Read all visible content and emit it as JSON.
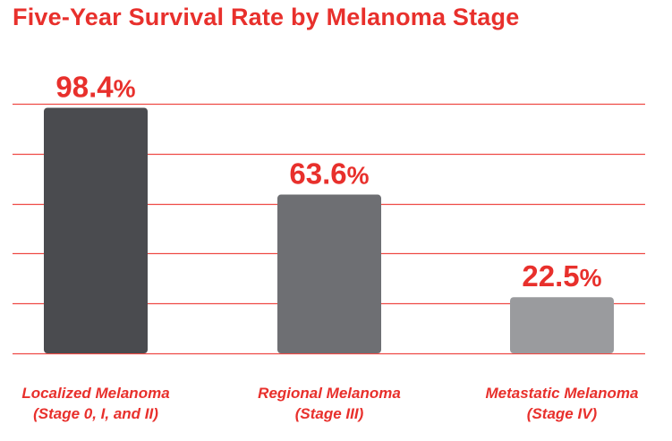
{
  "chart_data": {
    "type": "bar",
    "title": "Five-Year Survival Rate by Melanoma Stage",
    "xlabel": "",
    "ylabel": "",
    "ylim": [
      0,
      100
    ],
    "grid": true,
    "categories": [
      {
        "line1": "Localized Melanoma",
        "line2": "(Stage 0, I, and II)"
      },
      {
        "line1": "Regional Melanoma",
        "line2": "(Stage III)"
      },
      {
        "line1": "Metastatic Melanoma",
        "line2": "(Stage IV)"
      }
    ],
    "values": [
      98.4,
      63.6,
      22.5
    ],
    "value_labels": [
      "98.4",
      "63.6",
      "22.5"
    ],
    "value_suffix": "%",
    "bar_colors": [
      "#4a4b4f",
      "#6e6f73",
      "#9a9b9e"
    ]
  },
  "colors": {
    "accent": "#e8302c",
    "grid": "#ee4a45"
  }
}
